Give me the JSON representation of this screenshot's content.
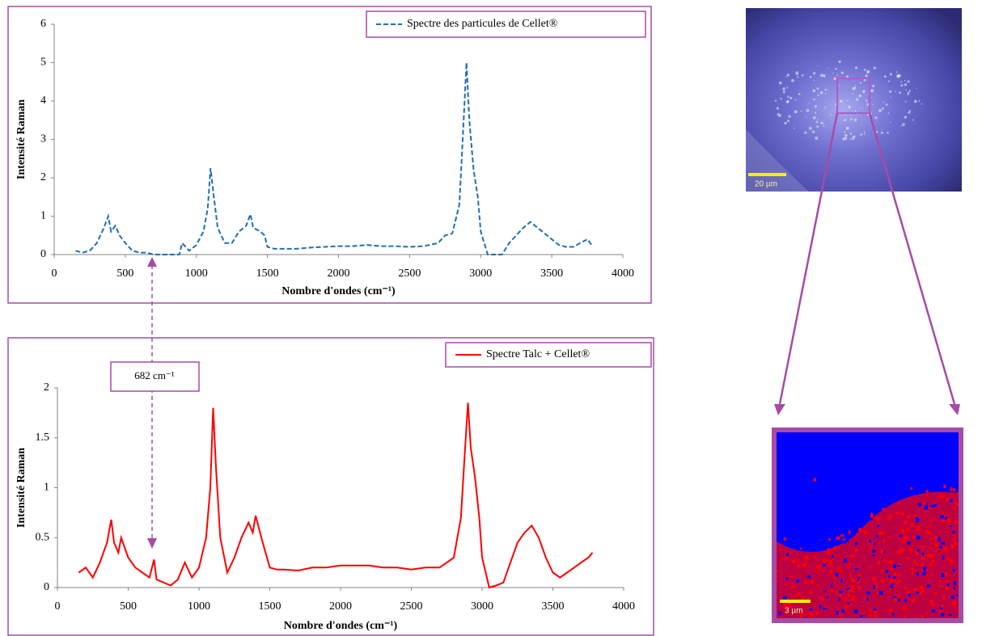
{
  "chart_data": [
    {
      "type": "line",
      "x_label": "Nombre d'ondes (cm⁻¹)",
      "y_label": "Intensité Raman",
      "x": [
        150,
        200,
        250,
        300,
        350,
        380,
        400,
        430,
        460,
        500,
        550,
        600,
        650,
        700,
        800,
        880,
        900,
        950,
        1000,
        1050,
        1080,
        1100,
        1120,
        1150,
        1200,
        1250,
        1300,
        1350,
        1380,
        1400,
        1450,
        1480,
        1500,
        1550,
        1600,
        1700,
        1800,
        1900,
        2000,
        2100,
        2200,
        2300,
        2400,
        2500,
        2600,
        2700,
        2750,
        2800,
        2850,
        2880,
        2900,
        2920,
        2950,
        2980,
        3000,
        3050,
        3100,
        3150,
        3200,
        3250,
        3300,
        3350,
        3400,
        3450,
        3500,
        3550,
        3600,
        3650,
        3700,
        3750,
        3780
      ],
      "series": [
        {
          "name": "Spectre des particules de Cellet®",
          "color": "#1f6fb4",
          "line_style": "dashed",
          "values": [
            0.1,
            0.05,
            0.1,
            0.3,
            0.7,
            1.0,
            0.6,
            0.75,
            0.5,
            0.3,
            0.1,
            0.05,
            0.05,
            0,
            0,
            0,
            0.3,
            0.1,
            0.25,
            0.6,
            1.2,
            2.25,
            1.6,
            0.7,
            0.3,
            0.3,
            0.6,
            0.75,
            1.05,
            0.7,
            0.6,
            0.5,
            0.2,
            0.15,
            0.15,
            0.15,
            0.18,
            0.2,
            0.22,
            0.22,
            0.25,
            0.22,
            0.22,
            0.2,
            0.22,
            0.3,
            0.5,
            0.55,
            1.3,
            3.5,
            5.0,
            3.5,
            2.2,
            1.5,
            0.6,
            0,
            0,
            0,
            0.3,
            0.5,
            0.7,
            0.85,
            0.7,
            0.55,
            0.4,
            0.25,
            0.2,
            0.2,
            0.3,
            0.4,
            0.25
          ]
        }
      ],
      "xlim": [
        0,
        4000
      ],
      "xticks": [
        0,
        500,
        1000,
        1500,
        2000,
        2500,
        3000,
        3500,
        4000
      ],
      "ylim": [
        0,
        6
      ],
      "yticks": [
        0,
        1,
        2,
        3,
        4,
        5,
        6
      ],
      "legend": "top-right"
    },
    {
      "type": "line",
      "x_label": "Nombre d'ondes (cm⁻¹)",
      "y_label": "Intensité Raman",
      "annotation": "682 cm⁻¹",
      "x": [
        150,
        200,
        250,
        300,
        350,
        380,
        400,
        430,
        450,
        500,
        550,
        600,
        650,
        682,
        700,
        750,
        800,
        850,
        900,
        950,
        1000,
        1050,
        1080,
        1100,
        1120,
        1150,
        1200,
        1250,
        1300,
        1350,
        1380,
        1400,
        1450,
        1500,
        1550,
        1600,
        1700,
        1800,
        1900,
        2000,
        2100,
        2200,
        2300,
        2400,
        2500,
        2600,
        2700,
        2800,
        2850,
        2880,
        2900,
        2920,
        2950,
        2980,
        3000,
        3050,
        3100,
        3150,
        3200,
        3250,
        3300,
        3350,
        3400,
        3450,
        3500,
        3550,
        3600,
        3650,
        3700,
        3750,
        3780
      ],
      "series": [
        {
          "name": "Spectre Talc + Cellet®",
          "color": "#ff0000",
          "line_style": "solid",
          "values": [
            0.15,
            0.2,
            0.1,
            0.25,
            0.45,
            0.68,
            0.45,
            0.35,
            0.5,
            0.3,
            0.2,
            0.15,
            0.1,
            0.28,
            0.08,
            0.05,
            0.02,
            0.08,
            0.25,
            0.1,
            0.2,
            0.5,
            1.0,
            1.8,
            1.2,
            0.5,
            0.15,
            0.3,
            0.5,
            0.65,
            0.55,
            0.72,
            0.45,
            0.2,
            0.18,
            0.18,
            0.17,
            0.2,
            0.2,
            0.22,
            0.22,
            0.22,
            0.2,
            0.2,
            0.18,
            0.2,
            0.2,
            0.3,
            0.7,
            1.4,
            1.85,
            1.4,
            1.1,
            0.7,
            0.3,
            0,
            0.02,
            0.05,
            0.25,
            0.45,
            0.55,
            0.62,
            0.5,
            0.3,
            0.15,
            0.1,
            0.15,
            0.2,
            0.25,
            0.3,
            0.35
          ]
        }
      ],
      "xlim": [
        0,
        4000
      ],
      "xticks": [
        0,
        500,
        1000,
        1500,
        2000,
        2500,
        3000,
        3500,
        4000
      ],
      "ylim": [
        0,
        2
      ],
      "yticks": [
        0,
        0.5,
        1,
        1.5,
        2
      ],
      "legend": "top-right"
    }
  ],
  "images": [
    {
      "scale_label": "20 µm"
    },
    {
      "scale_label": "3 µm"
    }
  ]
}
